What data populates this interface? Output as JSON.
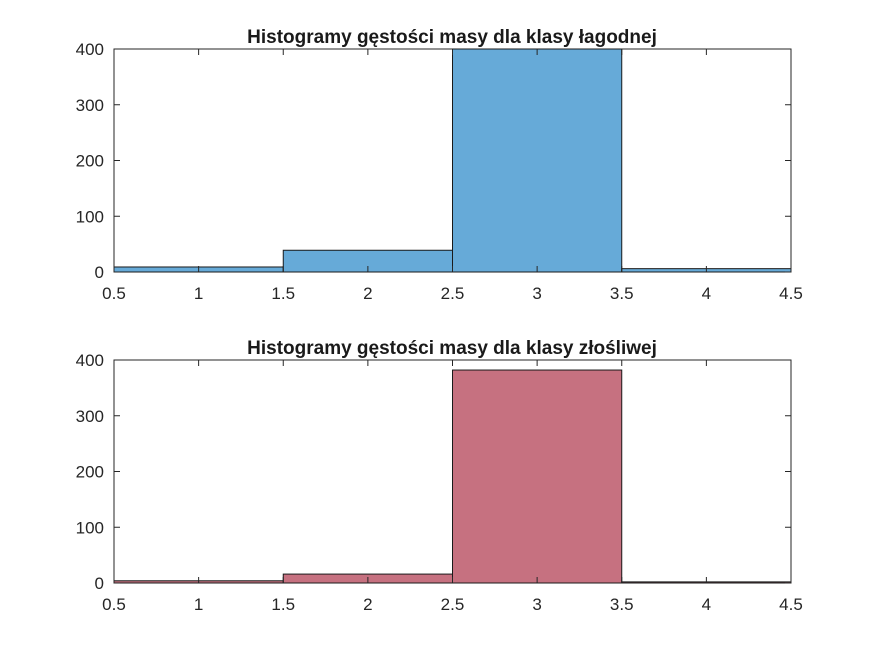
{
  "chart_data": [
    {
      "type": "bar",
      "title": "Histogramy gęstości masy dla klasy łagodnej",
      "bin_edges": [
        0.5,
        1.5,
        2.5,
        3.5,
        4.5
      ],
      "values": [
        9,
        39,
        400,
        6
      ],
      "xlim": [
        0.5,
        4.5
      ],
      "ylim": [
        0,
        400
      ],
      "xticks": [
        "0.5",
        "1",
        "1.5",
        "2",
        "2.5",
        "3",
        "3.5",
        "4",
        "4.5"
      ],
      "yticks": [
        "0",
        "100",
        "200",
        "300",
        "400"
      ],
      "color": "#66aad8"
    },
    {
      "type": "bar",
      "title": "Histogramy gęstości masy dla klasy złośliwej",
      "bin_edges": [
        0.5,
        1.5,
        2.5,
        3.5,
        4.5
      ],
      "values": [
        4,
        16,
        382,
        2
      ],
      "xlim": [
        0.5,
        4.5
      ],
      "ylim": [
        0,
        400
      ],
      "xticks": [
        "0.5",
        "1",
        "1.5",
        "2",
        "2.5",
        "3",
        "3.5",
        "4",
        "4.5"
      ],
      "yticks": [
        "0",
        "100",
        "200",
        "300",
        "400"
      ],
      "color": "#c67180"
    }
  ]
}
